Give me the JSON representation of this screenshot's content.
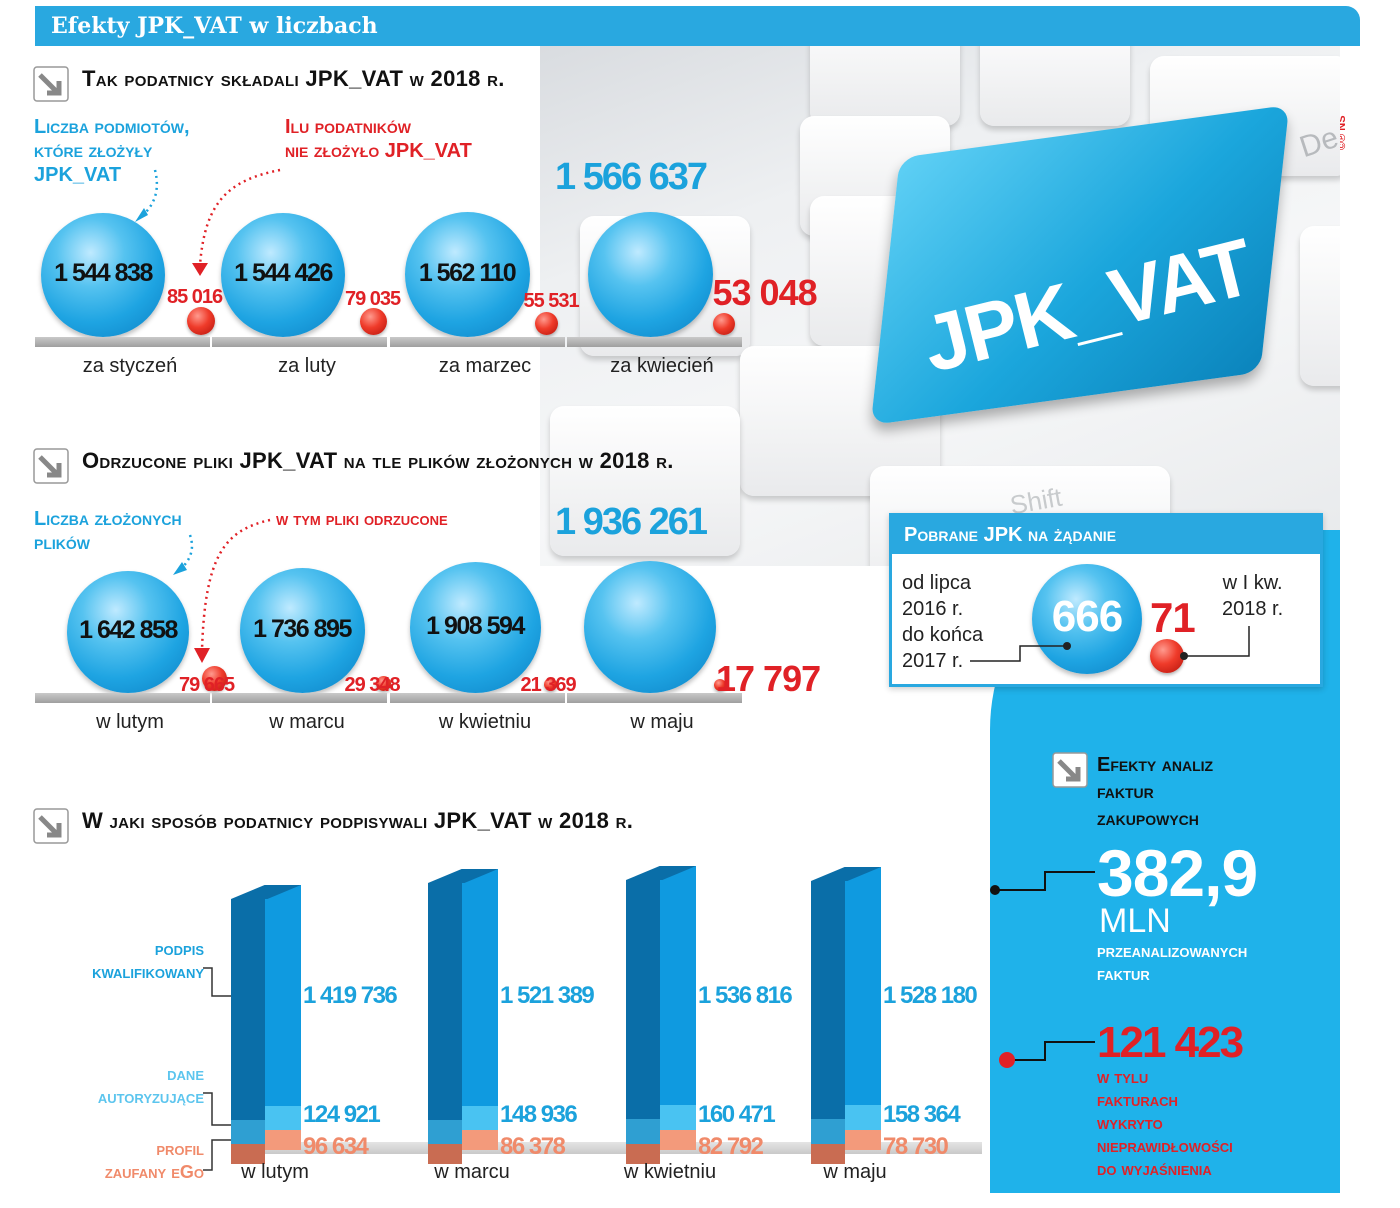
{
  "header": {
    "title": "Efekty JPK_VAT w liczbach"
  },
  "credit": "©℗ NS",
  "keyboard": {
    "key_label": "JPK_VAT",
    "del": "De",
    "shift": "Shift"
  },
  "section1": {
    "title": "Tak podatnicy składali JPK_VAT w 2018 r.",
    "legend_blue": [
      "Liczba podmiotów,",
      "które złożyły",
      "JPK_VAT"
    ],
    "legend_red": [
      "Ilu podatników",
      "nie złożyło JPK_VAT"
    ]
  },
  "section2": {
    "title": "Odrzucone pliki JPK_VAT na tle plików złożonych w 2018 r.",
    "legend_blue": [
      "Liczba złożonych",
      "plików"
    ],
    "legend_red": [
      "w tym pliki odrzucone"
    ]
  },
  "section3": {
    "title": "W jaki sposób podatnicy podpisywali JPK_VAT w 2018 r.",
    "legend": {
      "qualified": [
        "podpis",
        "kwalifikowany"
      ],
      "auth": [
        "dane",
        "autoryzujące"
      ],
      "profile": [
        "profil",
        "zaufany eGo"
      ]
    }
  },
  "pobrane": {
    "title": "Pobrane JPK na żądanie",
    "left_text": [
      "od lipca",
      "2016 r.",
      "do końca",
      "2017 r."
    ],
    "right_text": [
      "w I kw.",
      "2018 r."
    ],
    "big_value": "666",
    "small_value": "71"
  },
  "efekty": {
    "title": [
      "Efekty analiz",
      "faktur",
      "zakupowych"
    ],
    "big_value": "382,9",
    "unit": "MLN",
    "desc": [
      "przeanalizowanych",
      "faktur"
    ],
    "red_value": "121 423",
    "red_desc": [
      "w tylu",
      "fakturach",
      "wykryto",
      "nieprawidłowości",
      "do wyjaśnienia"
    ]
  },
  "chart_data": [
    {
      "type": "bubble",
      "title": "Tak podatnicy składali JPK_VAT w 2018 r.",
      "categories": [
        "za styczeń",
        "za luty",
        "za marzec",
        "za kwiecień"
      ],
      "series": [
        {
          "name": "Liczba podmiotów, które złożyły JPK_VAT",
          "values": [
            1544838,
            1544426,
            1562110,
            1566637
          ],
          "labels": [
            "1 544 838",
            "1 544 426",
            "1 562 110",
            "1 566 637"
          ]
        },
        {
          "name": "Ilu podatników nie złożyło JPK_VAT",
          "values": [
            85016,
            79035,
            55531,
            53048
          ],
          "labels": [
            "85 016",
            "79 035",
            "55 531",
            "53 048"
          ]
        }
      ]
    },
    {
      "type": "bubble",
      "title": "Odrzucone pliki JPK_VAT na tle plików złożonych w 2018 r.",
      "categories": [
        "w lutym",
        "w marcu",
        "w kwietniu",
        "w maju"
      ],
      "series": [
        {
          "name": "Liczba złożonych plików",
          "values": [
            1642858,
            1736895,
            1908594,
            1936261
          ],
          "labels": [
            "1 642 858",
            "1 736 895",
            "1 908 594",
            "1 936 261"
          ]
        },
        {
          "name": "w tym pliki odrzucone",
          "values": [
            79665,
            29348,
            21369,
            17797
          ],
          "labels": [
            "79 665",
            "29 348",
            "21 369",
            "17 797"
          ]
        }
      ]
    },
    {
      "type": "bar",
      "stacked": true,
      "title": "W jaki sposób podatnicy podpisywali JPK_VAT w 2018 r.",
      "categories": [
        "w lutym",
        "w marcu",
        "w kwietniu",
        "w maju"
      ],
      "series": [
        {
          "name": "podpis kwalifikowany",
          "values": [
            1419736,
            1521389,
            1536816,
            1528180
          ],
          "labels": [
            "1 419 736",
            "1 521 389",
            "1 536 816",
            "1 528 180"
          ],
          "color": "#0f8fd4"
        },
        {
          "name": "dane autoryzujące",
          "values": [
            124921,
            148936,
            160471,
            158364
          ],
          "labels": [
            "124 921",
            "148 936",
            "160 471",
            "158 364"
          ],
          "color": "#39b8ee"
        },
        {
          "name": "profil zaufany eGo",
          "values": [
            96634,
            86378,
            82792,
            78730
          ],
          "labels": [
            "96 634",
            "86 378",
            "82 792",
            "78 730"
          ],
          "color": "#f08a6a"
        }
      ]
    }
  ]
}
